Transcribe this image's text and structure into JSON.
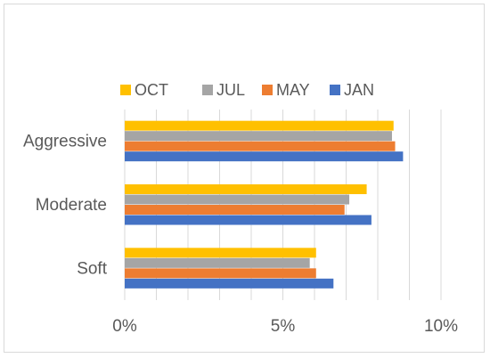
{
  "chart_data": {
    "type": "bar",
    "orientation": "horizontal",
    "title": "",
    "xlabel": "",
    "ylabel": "",
    "categories": [
      "Aggressive",
      "Moderate",
      "Soft"
    ],
    "series": [
      {
        "name": "OCT",
        "color": "#ffc000",
        "values": [
          8.5,
          7.65,
          6.05
        ]
      },
      {
        "name": "JUL",
        "color": "#a5a5a5",
        "values": [
          8.45,
          7.1,
          5.85
        ]
      },
      {
        "name": "MAY",
        "color": "#ed7d31",
        "values": [
          8.55,
          6.95,
          6.05
        ]
      },
      {
        "name": "JAN",
        "color": "#4472c4",
        "values": [
          8.8,
          7.8,
          6.6
        ]
      }
    ],
    "xlim": [
      0,
      10
    ],
    "xticks": [
      0,
      5,
      10
    ],
    "xtick_labels": [
      "0%",
      "5%",
      "10%"
    ],
    "grid": true,
    "legend_position": "top"
  }
}
